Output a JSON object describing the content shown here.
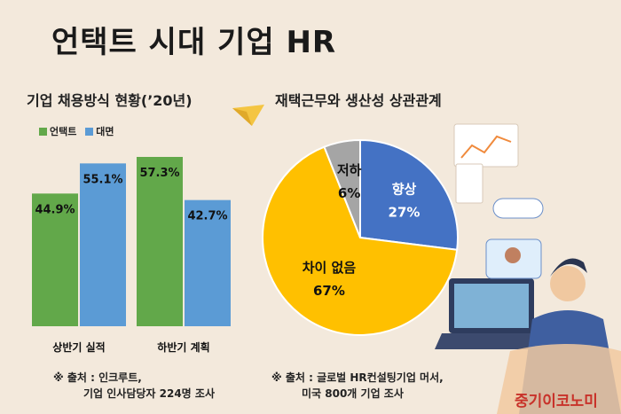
{
  "title": "언택트 시대 기업 HR",
  "brand": "중기이코노미",
  "chart_data": [
    {
      "type": "bar",
      "title": "기업 채용방식 현황(’20년)",
      "categories": [
        "상반기 실적",
        "하반기 계획"
      ],
      "series": [
        {
          "name": "언택트",
          "values": [
            44.9,
            57.3
          ],
          "color": "#62a84a"
        },
        {
          "name": "대면",
          "values": [
            55.1,
            42.7
          ],
          "color": "#5b9bd5"
        }
      ],
      "value_labels": [
        [
          "44.9%",
          "57.3%"
        ],
        [
          "55.1%",
          "42.7%"
        ]
      ],
      "ylim": [
        0,
        60
      ],
      "grid": false,
      "legend": "top-left",
      "source": {
        "line1": "※ 출처 : 인크루트,",
        "line2": "기업 인사담당자 224명 조사"
      }
    },
    {
      "type": "pie",
      "title": "재택근무와 생산성 상관관계",
      "slices": [
        {
          "label": "향상",
          "value": 27,
          "value_label": "27%",
          "color": "#4472c4",
          "text_color": "#ffffff"
        },
        {
          "label": "차이 없음",
          "value": 67,
          "value_label": "67%",
          "color": "#ffc000",
          "text_color": "#111111"
        },
        {
          "label": "저하",
          "value": 6,
          "value_label": "6%",
          "color": "#a5a5a5",
          "text_color": "#111111"
        }
      ],
      "source": {
        "line1": "※ 출처 : 글로벌 HR컨설팅기업 머서,",
        "line2": "미국 800개 기업 조사"
      }
    }
  ]
}
